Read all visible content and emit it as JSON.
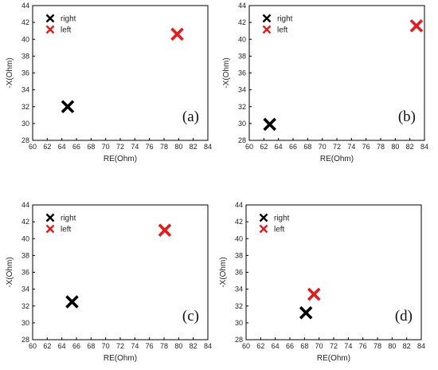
{
  "chart_data": [
    {
      "type": "scatter",
      "panel_label": "(a)",
      "xlabel": "RE(Ohm)",
      "ylabel": "-X(Ohm)",
      "xlim": [
        60,
        84
      ],
      "ylim": [
        28,
        44
      ],
      "xticks": [
        "60",
        "62",
        "64",
        "66",
        "68",
        "70",
        "72",
        "74",
        "76",
        "78",
        "80",
        "82",
        "84"
      ],
      "yticks": [
        "28",
        "30",
        "32",
        "34",
        "36",
        "38",
        "40",
        "42",
        "44"
      ],
      "legend_position": "top-left",
      "series": [
        {
          "name": "right",
          "color": "#000000",
          "marker": "x",
          "points": [
            {
              "x": 64.8,
              "y": 32.0
            }
          ]
        },
        {
          "name": "left",
          "color": "#e21b1b",
          "marker": "x",
          "points": [
            {
              "x": 79.8,
              "y": 40.6
            }
          ]
        }
      ]
    },
    {
      "type": "scatter",
      "panel_label": "(b)",
      "xlabel": "RE(Ohm)",
      "ylabel": "-X(Ohm)",
      "xlim": [
        60,
        84
      ],
      "ylim": [
        28,
        44
      ],
      "xticks": [
        "60",
        "62",
        "64",
        "66",
        "68",
        "70",
        "72",
        "74",
        "76",
        "78",
        "80",
        "82",
        "84"
      ],
      "yticks": [
        "28",
        "30",
        "32",
        "34",
        "36",
        "38",
        "40",
        "42",
        "44"
      ],
      "legend_position": "top-left",
      "series": [
        {
          "name": "right",
          "color": "#000000",
          "marker": "x",
          "points": [
            {
              "x": 62.8,
              "y": 29.9
            }
          ]
        },
        {
          "name": "left",
          "color": "#e21b1b",
          "marker": "x",
          "points": [
            {
              "x": 82.9,
              "y": 41.6
            }
          ]
        }
      ]
    },
    {
      "type": "scatter",
      "panel_label": "(c)",
      "xlabel": "RE(Ohm)",
      "ylabel": "-X(Ohm)",
      "xlim": [
        60,
        84
      ],
      "ylim": [
        28,
        44
      ],
      "xticks": [
        "60",
        "62",
        "64",
        "66",
        "68",
        "70",
        "72",
        "74",
        "76",
        "78",
        "80",
        "82",
        "84"
      ],
      "yticks": [
        "28",
        "30",
        "32",
        "34",
        "36",
        "38",
        "40",
        "42",
        "44"
      ],
      "legend_position": "top-left",
      "series": [
        {
          "name": "right",
          "color": "#000000",
          "marker": "x",
          "points": [
            {
              "x": 65.4,
              "y": 32.5
            }
          ]
        },
        {
          "name": "left",
          "color": "#e21b1b",
          "marker": "x",
          "points": [
            {
              "x": 78.1,
              "y": 41.0
            }
          ]
        }
      ]
    },
    {
      "type": "scatter",
      "panel_label": "(d)",
      "xlabel": "RE(Ohm)",
      "ylabel": "-X(Ohm)",
      "xlim": [
        60,
        84
      ],
      "ylim": [
        28,
        44
      ],
      "xticks": [
        "60",
        "62",
        "64",
        "66",
        "68",
        "70",
        "72",
        "74",
        "76",
        "78",
        "80",
        "82",
        "84"
      ],
      "yticks": [
        "28",
        "30",
        "32",
        "34",
        "36",
        "38",
        "40",
        "42",
        "44"
      ],
      "legend_position": "top-left",
      "series": [
        {
          "name": "right",
          "color": "#000000",
          "marker": "x",
          "points": [
            {
              "x": 68.2,
              "y": 31.2
            }
          ]
        },
        {
          "name": "left",
          "color": "#e21b1b",
          "marker": "x",
          "points": [
            {
              "x": 69.3,
              "y": 33.4
            }
          ]
        }
      ]
    }
  ]
}
